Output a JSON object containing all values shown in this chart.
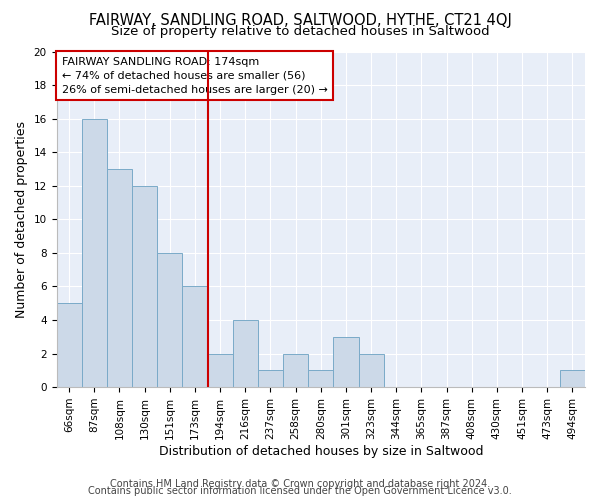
{
  "title": "FAIRWAY, SANDLING ROAD, SALTWOOD, HYTHE, CT21 4QJ",
  "subtitle": "Size of property relative to detached houses in Saltwood",
  "xlabel": "Distribution of detached houses by size in Saltwood",
  "ylabel": "Number of detached properties",
  "categories": [
    "66sqm",
    "87sqm",
    "108sqm",
    "130sqm",
    "151sqm",
    "173sqm",
    "194sqm",
    "216sqm",
    "237sqm",
    "258sqm",
    "280sqm",
    "301sqm",
    "323sqm",
    "344sqm",
    "365sqm",
    "387sqm",
    "408sqm",
    "430sqm",
    "451sqm",
    "473sqm",
    "494sqm"
  ],
  "values": [
    5,
    16,
    13,
    12,
    8,
    6,
    2,
    4,
    1,
    2,
    1,
    3,
    2,
    0,
    0,
    0,
    0,
    0,
    0,
    0,
    1
  ],
  "bar_color": "#ccd9e8",
  "bar_edge_color": "#7aaac8",
  "vline_color": "#cc0000",
  "vline_pos": 5.5,
  "annotation_text": "FAIRWAY SANDLING ROAD: 174sqm\n← 74% of detached houses are smaller (56)\n26% of semi-detached houses are larger (20) →",
  "annotation_box_facecolor": "#ffffff",
  "annotation_box_edgecolor": "#cc0000",
  "ylim": [
    0,
    20
  ],
  "yticks": [
    0,
    2,
    4,
    6,
    8,
    10,
    12,
    14,
    16,
    18,
    20
  ],
  "bg_color": "#e8eef8",
  "grid_color": "#ffffff",
  "title_fontsize": 10.5,
  "subtitle_fontsize": 9.5,
  "axis_label_fontsize": 9,
  "tick_fontsize": 7.5,
  "annotation_fontsize": 8,
  "footer_fontsize": 7,
  "footer_line1": "Contains HM Land Registry data © Crown copyright and database right 2024.",
  "footer_line2": "Contains public sector information licensed under the Open Government Licence v3.0."
}
